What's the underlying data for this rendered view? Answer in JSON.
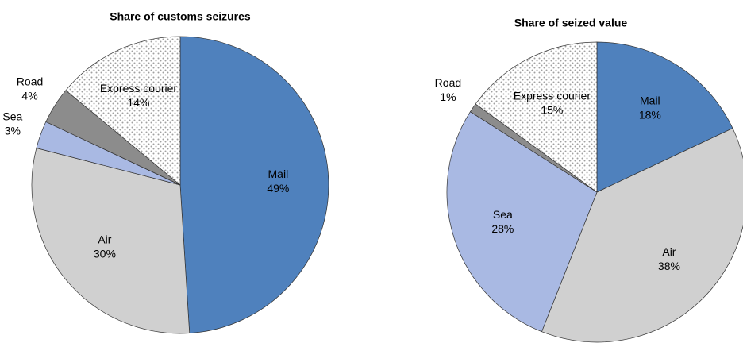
{
  "chart_data": [
    {
      "type": "pie",
      "title": "Share of customs seizures",
      "categories": [
        "Mail",
        "Air",
        "Sea",
        "Road",
        "Express courier"
      ],
      "values": [
        49,
        30,
        3,
        4,
        14
      ],
      "value_labels": [
        "49%",
        "30%",
        "3%",
        "4%",
        "14%"
      ],
      "colors": [
        "#4f81bd",
        "#d0d0d0",
        "#a9b9e3",
        "#8c8c8c",
        "#ffffff"
      ],
      "patterns": [
        null,
        null,
        null,
        null,
        "dots"
      ]
    },
    {
      "type": "pie",
      "title": "Share of seized value",
      "categories": [
        "Mail",
        "Air",
        "Sea",
        "Road",
        "Express courier"
      ],
      "values": [
        18,
        38,
        28,
        1,
        15
      ],
      "value_labels": [
        "18%",
        "38%",
        "28%",
        "1%",
        "15%"
      ],
      "colors": [
        "#4f81bd",
        "#d0d0d0",
        "#a9b9e3",
        "#8c8c8c",
        "#ffffff"
      ],
      "patterns": [
        null,
        null,
        null,
        null,
        "dots"
      ]
    }
  ]
}
